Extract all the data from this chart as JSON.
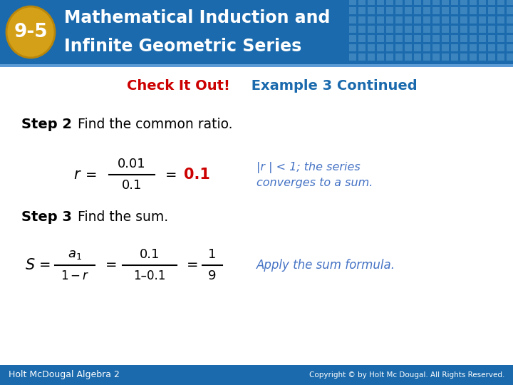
{
  "bg_color": "#ffffff",
  "header_bg_color": "#1a6aad",
  "header_badge_bg": "#d4a017",
  "header_badge_text": "9-5",
  "header_title_line1": "Mathematical Induction and",
  "header_title_line2": "Infinite Geometric Series",
  "header_text_color": "#ffffff",
  "subtitle_check": "Check It Out!",
  "subtitle_check_color": "#cc0000",
  "subtitle_rest": " Example 3 Continued",
  "subtitle_rest_color": "#1a6aad",
  "step2_bold": "Step 2",
  "step2_rest": " Find the common ratio.",
  "formula_r_result": "0.1",
  "formula_r_result_color": "#cc0000",
  "note_r_line1": "|r | < 1; the series",
  "note_r_line2": "converges to a sum.",
  "note_r_color": "#4472c4",
  "step3_bold": "Step 3",
  "step3_rest": " Find the sum.",
  "note_s": "Apply the sum formula.",
  "note_s_color": "#4472c4",
  "footer_left": "Holt Mc.Dougal Algebra 2",
  "footer_right": "Copyright © by Holt Mc Dougal. All Rights Reserved.",
  "footer_bg": "#1a6aad",
  "footer_text_color": "#ffffff",
  "header_grid_color": "#4a90c4"
}
